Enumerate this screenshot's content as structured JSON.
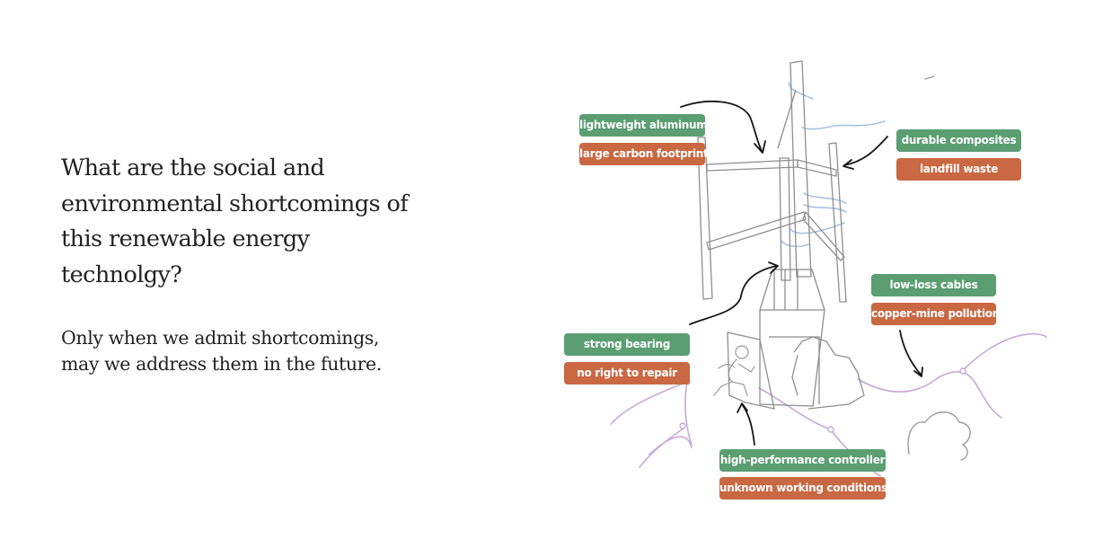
{
  "question": "What are the social and environmental shortcomings of this renewable energy technolgy?",
  "answer": "Only when we admit shortcomings, may we address them in the future.",
  "colors": {
    "pro": "#5a9e72",
    "con": "#c96842",
    "background": "#ffffff"
  },
  "annotations": {
    "blades": {
      "pro": "lightweight aluminum",
      "con": "large carbon footprint"
    },
    "arms": {
      "pro": "durable composites",
      "con": "landfill waste"
    },
    "cables": {
      "pro": "low-loss cables",
      "con": "copper-mine pollution"
    },
    "bearing": {
      "pro": "strong bearing",
      "con": "no right to repair"
    },
    "controller": {
      "pro": "high-performance controller",
      "con": "unknown working conditions"
    }
  }
}
